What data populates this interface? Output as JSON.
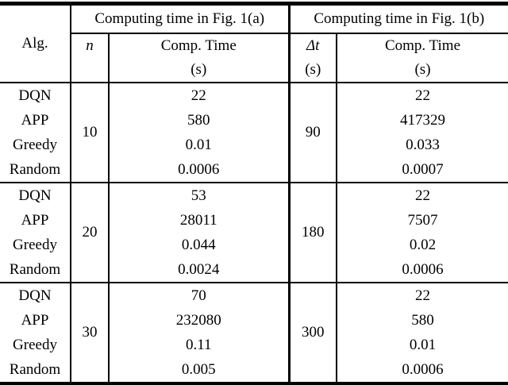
{
  "table": {
    "header": {
      "alg_label": "Alg.",
      "group_a_title": "Computing time in Fig. 1(a)",
      "group_b_title": "Computing time in Fig. 1(b)",
      "col_n_label": "n",
      "col_comp_time_label": "Comp. Time",
      "col_unit_label": "(s)",
      "col_dt_label": "Δt"
    },
    "groups": [
      {
        "n": "10",
        "dt": "90",
        "rows": [
          {
            "alg": "DQN",
            "time_a": "22",
            "time_b": "22"
          },
          {
            "alg": "APP",
            "time_a": "580",
            "time_b": "417329"
          },
          {
            "alg": "Greedy",
            "time_a": "0.01",
            "time_b": "0.033"
          },
          {
            "alg": "Random",
            "time_a": "0.0006",
            "time_b": "0.0007"
          }
        ]
      },
      {
        "n": "20",
        "dt": "180",
        "rows": [
          {
            "alg": "DQN",
            "time_a": "53",
            "time_b": "22"
          },
          {
            "alg": "APP",
            "time_a": "28011",
            "time_b": "7507"
          },
          {
            "alg": "Greedy",
            "time_a": "0.044",
            "time_b": "0.02"
          },
          {
            "alg": "Random",
            "time_a": "0.0024",
            "time_b": "0.0006"
          }
        ]
      },
      {
        "n": "30",
        "dt": "300",
        "rows": [
          {
            "alg": "DQN",
            "time_a": "70",
            "time_b": "22"
          },
          {
            "alg": "APP",
            "time_a": "232080",
            "time_b": "580"
          },
          {
            "alg": "Greedy",
            "time_a": "0.11",
            "time_b": "0.01"
          },
          {
            "alg": "Random",
            "time_a": "0.005",
            "time_b": "0.0006"
          }
        ]
      }
    ]
  }
}
